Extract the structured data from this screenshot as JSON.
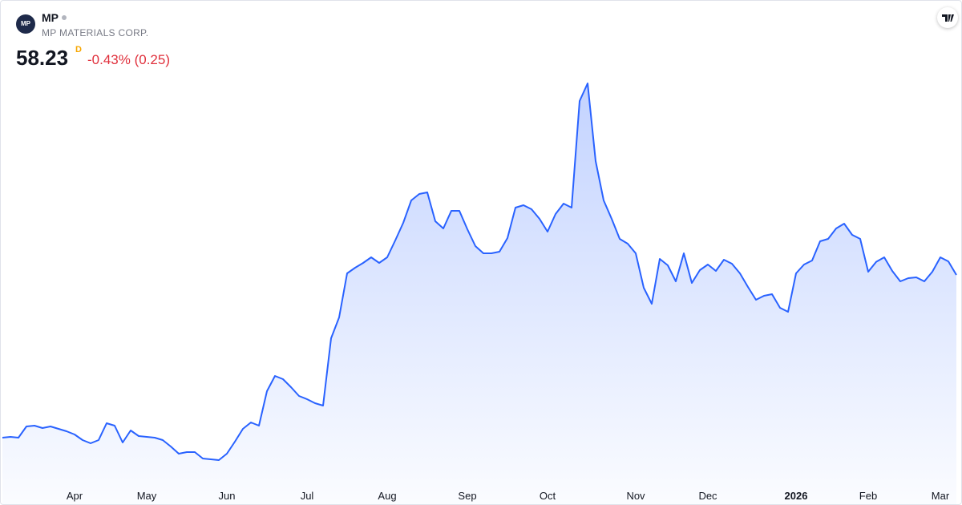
{
  "header": {
    "symbol": "MP",
    "name": "MP MATERIALS CORP.",
    "price": "58.23",
    "resolution": "D",
    "change": "-0.43% (0.25)"
  },
  "chart_data": {
    "type": "area",
    "color": "#2962ff",
    "categories": [
      null,
      null,
      null,
      null,
      null,
      null,
      null,
      null,
      null,
      "Apr",
      null,
      null,
      null,
      null,
      null,
      null,
      null,
      null,
      "May",
      null,
      null,
      null,
      null,
      null,
      null,
      null,
      null,
      null,
      "Jun",
      null,
      null,
      null,
      null,
      null,
      null,
      null,
      null,
      null,
      "Jul",
      null,
      null,
      null,
      null,
      null,
      null,
      null,
      null,
      null,
      "Aug",
      null,
      null,
      null,
      null,
      null,
      null,
      null,
      null,
      null,
      "Sep",
      null,
      null,
      null,
      null,
      null,
      null,
      null,
      null,
      null,
      "Oct",
      null,
      null,
      null,
      null,
      null,
      null,
      null,
      null,
      null,
      null,
      "Nov",
      null,
      null,
      null,
      null,
      null,
      null,
      null,
      null,
      "Dec",
      null,
      null,
      null,
      null,
      null,
      null,
      null,
      null,
      null,
      null,
      "2026",
      null,
      null,
      null,
      null,
      null,
      null,
      null,
      null,
      "Feb",
      null,
      null,
      null,
      null,
      null,
      null,
      null,
      null,
      "Mar",
      null,
      null
    ],
    "values": [
      23.48,
      23.65,
      23.48,
      25.87,
      26.04,
      25.53,
      25.87,
      25.36,
      24.85,
      24.16,
      22.96,
      22.28,
      22.96,
      26.56,
      26.04,
      22.45,
      25.02,
      23.82,
      23.65,
      23.48,
      22.96,
      21.59,
      20.05,
      20.39,
      20.39,
      19.02,
      18.85,
      18.68,
      20.05,
      22.62,
      25.36,
      26.73,
      26.04,
      33.41,
      36.66,
      35.97,
      34.26,
      32.38,
      31.69,
      30.84,
      30.32,
      44.7,
      49.16,
      58.57,
      59.77,
      60.8,
      62.0,
      60.8,
      62.0,
      65.59,
      69.36,
      74.15,
      75.52,
      75.86,
      69.7,
      68.16,
      71.93,
      71.93,
      67.99,
      64.39,
      62.85,
      62.85,
      63.19,
      66.11,
      72.61,
      73.12,
      72.27,
      70.21,
      67.47,
      71.24,
      73.47,
      72.61,
      95.38,
      99.15,
      82.54,
      74.15,
      70.21,
      65.93,
      64.91,
      62.85,
      55.49,
      52.07,
      61.65,
      60.29,
      56.86,
      62.85,
      56.52,
      59.26,
      60.46,
      59.09,
      61.48,
      60.63,
      58.57,
      55.66,
      52.92,
      53.78,
      54.12,
      51.21,
      50.35,
      58.57,
      60.46,
      61.31,
      65.42,
      65.93,
      68.16,
      69.19,
      66.79,
      65.93,
      58.91,
      61.03,
      62.0,
      59.09,
      56.86,
      57.55,
      57.72,
      56.86,
      58.91,
      62.0,
      61.12,
      58.23
    ],
    "ylim": [
      8.92,
      116.78
    ]
  }
}
